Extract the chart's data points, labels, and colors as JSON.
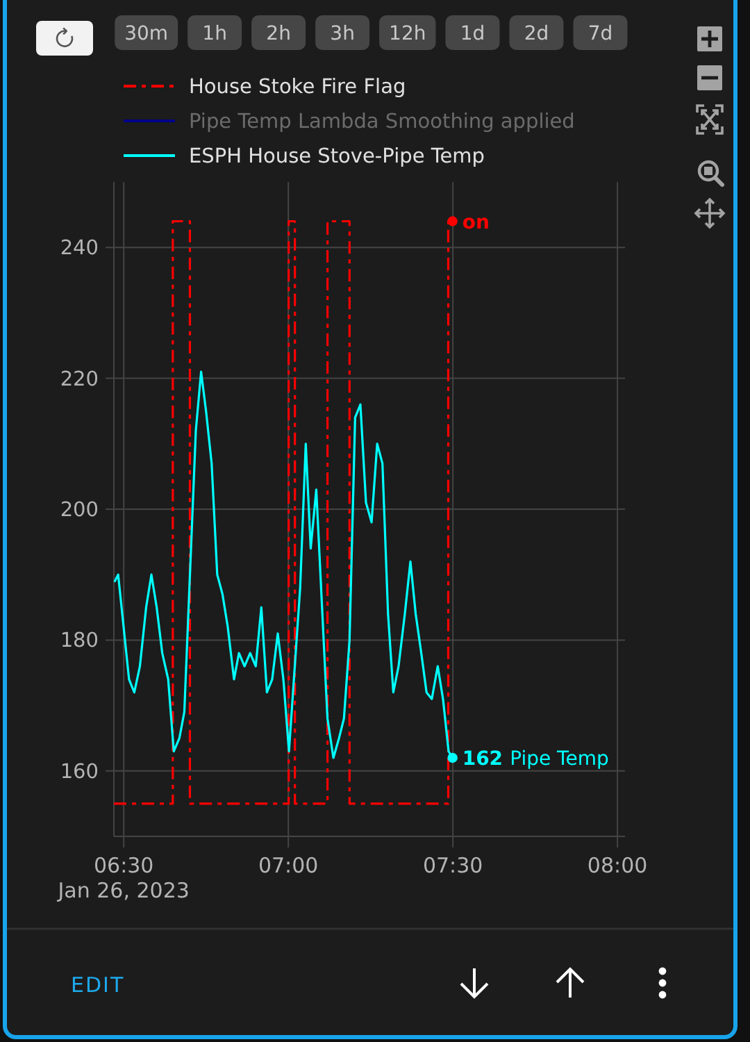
{
  "chart_data": {
    "type": "line",
    "xlim": [
      6.47,
      8.023
    ],
    "xticks": [
      {
        "value": 6.5,
        "label": "06:30\nJan 26, 2023"
      },
      {
        "value": 7,
        "label": "07:00"
      },
      {
        "value": 7.5,
        "label": "07:30"
      },
      {
        "value": 8,
        "label": "08:00"
      }
    ],
    "ylim": [
      150,
      250
    ],
    "yticks": [
      160,
      180,
      200,
      220,
      240
    ],
    "grid": true,
    "legend": "top",
    "series": [
      {
        "name": "House Stoke Fire Flag",
        "type": "step",
        "color": "#ff0000",
        "line_style": "dashed",
        "x": [
          6.47,
          6.649,
          6.701,
          7.001,
          7.02,
          7.119,
          7.186,
          7.486,
          7.499
        ],
        "values": [
          155,
          244,
          155,
          244,
          155,
          244,
          155,
          244,
          244
        ],
        "value_labels": [
          null,
          null,
          null,
          null,
          null,
          null,
          null,
          null,
          "on"
        ]
      },
      {
        "name": "Pipe Temp Lambda Smoothing applied",
        "color": "#00008b",
        "line_style": "solid"
      },
      {
        "name": "ESPH House Stove-Pipe Temp",
        "color": "#00ffff",
        "line_style": "solid",
        "x": [
          6.473,
          6.483,
          6.516,
          6.532,
          6.549,
          6.568,
          6.584,
          6.6,
          6.617,
          6.635,
          6.652,
          6.669,
          6.684,
          6.719,
          6.735,
          6.75,
          6.767,
          6.784,
          6.8,
          6.816,
          6.835,
          6.85,
          6.867,
          6.884,
          6.901,
          6.918,
          6.935,
          6.951,
          6.968,
          6.985,
          7.002,
          7.036,
          7.053,
          7.068,
          7.085,
          7.119,
          7.137,
          7.154,
          7.169,
          7.186,
          7.203,
          7.219,
          7.236,
          7.253,
          7.27,
          7.286,
          7.303,
          7.319,
          7.335,
          7.354,
          7.371,
          7.387,
          7.404,
          7.42,
          7.436,
          7.454,
          7.47,
          7.487,
          7.499
        ],
        "values": [
          189,
          190,
          174,
          172,
          176,
          185,
          190,
          185,
          178,
          174,
          163,
          165,
          169,
          212,
          221,
          215,
          207,
          190,
          187,
          182,
          174,
          178,
          176,
          178,
          176,
          185,
          172,
          174,
          181,
          174,
          163,
          188,
          210,
          194,
          203,
          168,
          162,
          165,
          168,
          180,
          214,
          216,
          201,
          198,
          210,
          207,
          184,
          172,
          176,
          184,
          192,
          184,
          178,
          172,
          171,
          176,
          171,
          163,
          162
        ],
        "value_labels": [
          null,
          null,
          null,
          null,
          null,
          null,
          null,
          null,
          null,
          null,
          null,
          null,
          null,
          null,
          null,
          null,
          null,
          null,
          null,
          null,
          null,
          null,
          null,
          null,
          null,
          null,
          null,
          null,
          null,
          null,
          null,
          null,
          null,
          null,
          null,
          null,
          null,
          null,
          null,
          null,
          null,
          null,
          null,
          null,
          null,
          null,
          null,
          null,
          null,
          null,
          null,
          null,
          null,
          null,
          null,
          null,
          null,
          null,
          "162"
        ]
      }
    ],
    "annotations": [
      "30m",
      "1h",
      "2h",
      "3h",
      "12h",
      "1d",
      "2d",
      "7d",
      {
        "text": "Pipe Temp",
        "x": 7.499,
        "y": 162
      },
      "EDIT"
    ]
  }
}
